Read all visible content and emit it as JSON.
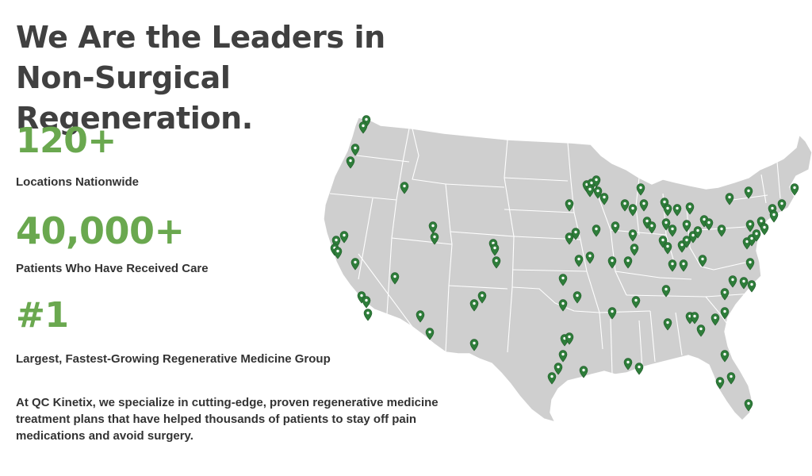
{
  "headline": "We Are the Leaders in Non-Surgical Regeneration.",
  "stats": [
    {
      "number": "120+",
      "label": "Locations Nationwide"
    },
    {
      "number": "40,000+",
      "label": "Patients Who Have Received Care"
    },
    {
      "number": "#1",
      "label": "Largest, Fastest-Growing Regenerative Medicine Group"
    }
  ],
  "description": "At QC Kinetix, we specialize in cutting-edge, proven regenerative medicine treatment plans that have helped thousands of patients to stay off pain medications and avoid surgery.",
  "map": {
    "land_color": "#cfcfcf",
    "border_color": "#ffffff",
    "marker_color": "#2e7d3a",
    "marker_icon": "map-pin-icon"
  },
  "colors": {
    "accent": "#6aa84f",
    "headline": "#404040",
    "body_text": "#333333"
  }
}
